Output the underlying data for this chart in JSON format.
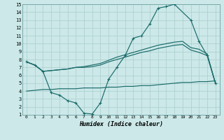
{
  "xlabel": "Humidex (Indice chaleur)",
  "bg_color": "#cce8e8",
  "line_color": "#1a6b6b",
  "grid_color": "#aacece",
  "xlim": [
    -0.5,
    23.5
  ],
  "ylim": [
    1,
    15
  ],
  "xticks": [
    0,
    1,
    2,
    3,
    4,
    5,
    6,
    7,
    8,
    9,
    10,
    11,
    12,
    13,
    14,
    15,
    16,
    17,
    18,
    19,
    20,
    21,
    22,
    23
  ],
  "yticks": [
    1,
    2,
    3,
    4,
    5,
    6,
    7,
    8,
    9,
    10,
    11,
    12,
    13,
    14,
    15
  ],
  "curve_main_x": [
    0,
    1,
    2,
    3,
    4,
    5,
    6,
    7,
    8,
    9,
    10,
    11,
    12,
    13,
    14,
    15,
    16,
    17,
    18,
    20,
    21,
    22,
    23
  ],
  "curve_main_y": [
    7.7,
    7.3,
    6.5,
    3.8,
    3.5,
    2.8,
    2.5,
    1.2,
    1.1,
    2.5,
    5.5,
    7.0,
    8.5,
    10.7,
    11.0,
    12.5,
    14.5,
    14.7,
    15.0,
    13.0,
    10.3,
    8.5,
    5.0
  ],
  "curve_upper_x": [
    0,
    1,
    2,
    3,
    4,
    5,
    6,
    7,
    8,
    9,
    10,
    11,
    12,
    13,
    14,
    15,
    16,
    17,
    18,
    19,
    20,
    21,
    22,
    23
  ],
  "curve_upper_y": [
    7.7,
    7.3,
    6.5,
    6.6,
    6.7,
    6.8,
    7.0,
    7.1,
    7.3,
    7.5,
    7.9,
    8.3,
    8.6,
    8.9,
    9.2,
    9.5,
    9.8,
    10.0,
    10.2,
    10.3,
    9.5,
    9.3,
    8.7,
    5.0
  ],
  "curve_mid_x": [
    0,
    1,
    2,
    3,
    4,
    5,
    6,
    7,
    8,
    9,
    10,
    11,
    12,
    13,
    14,
    15,
    16,
    17,
    18,
    19,
    20,
    21,
    22,
    23
  ],
  "curve_mid_y": [
    7.7,
    7.3,
    6.5,
    6.6,
    6.7,
    6.8,
    7.0,
    7.0,
    7.1,
    7.3,
    7.7,
    8.0,
    8.3,
    8.6,
    8.9,
    9.1,
    9.4,
    9.6,
    9.8,
    9.9,
    9.2,
    8.9,
    8.5,
    5.0
  ],
  "curve_bot_x": [
    0,
    1,
    2,
    3,
    4,
    5,
    6,
    7,
    8,
    9,
    10,
    11,
    12,
    13,
    14,
    15,
    16,
    17,
    18,
    19,
    20,
    21,
    22,
    23
  ],
  "curve_bot_y": [
    4.0,
    4.1,
    4.2,
    4.2,
    4.3,
    4.3,
    4.3,
    4.4,
    4.4,
    4.4,
    4.5,
    4.5,
    4.6,
    4.6,
    4.7,
    4.7,
    4.8,
    4.9,
    5.0,
    5.1,
    5.1,
    5.2,
    5.2,
    5.3
  ]
}
